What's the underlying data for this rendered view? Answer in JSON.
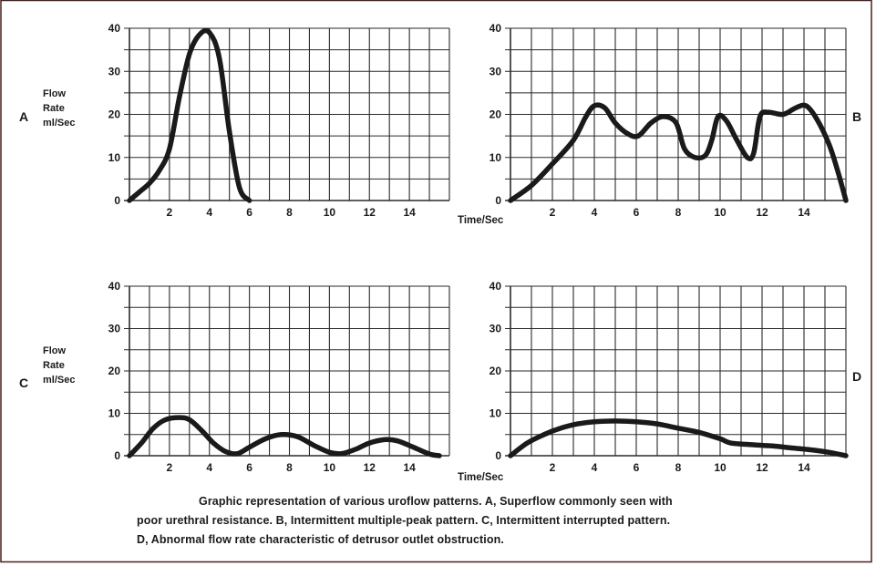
{
  "figure": {
    "caption_lines": [
      "Graphic representation of various uroflow patterns. A, Superflow commonly seen with",
      "poor urethral resistance. B, Intermittent multiple-peak pattern. C, Intermittent interrupted pattern.",
      "D, Abnormal flow rate characteristic of detrusor outlet obstruction."
    ],
    "colors": {
      "frame": "#4a1f1f",
      "ink": "#1a1a1a",
      "grid": "#2a2a2a"
    }
  },
  "chart_data": [
    {
      "type": "line",
      "panel_letter": "A",
      "ylabel": [
        "Flow",
        "Rate",
        "ml/Sec"
      ],
      "xlabel": "Time/Sec",
      "xlim": [
        0,
        16
      ],
      "ylim": [
        0,
        40
      ],
      "xticks": [
        "2",
        "4",
        "6",
        "8",
        "10",
        "12",
        "14"
      ],
      "yticks": [
        "0",
        "10",
        "20",
        "30",
        "40"
      ],
      "grid": true,
      "x": [
        0,
        0.5,
        1,
        1.5,
        2,
        2.5,
        3,
        3.5,
        4,
        4.5,
        5,
        5.5,
        6
      ],
      "y": [
        0,
        2,
        4,
        7,
        12,
        24,
        34,
        38.5,
        39,
        33,
        16,
        3,
        0
      ]
    },
    {
      "type": "line",
      "panel_letter": "B",
      "xlim": [
        0,
        16
      ],
      "ylim": [
        0,
        40
      ],
      "xticks": [
        "2",
        "4",
        "6",
        "8",
        "10",
        "12",
        "14"
      ],
      "yticks": [
        "0",
        "10",
        "20",
        "30",
        "40"
      ],
      "grid": true,
      "x": [
        0,
        1,
        2,
        3,
        3.6,
        4,
        4.5,
        5,
        5.6,
        6.1,
        6.7,
        7.3,
        7.9,
        8.3,
        8.8,
        9.3,
        9.6,
        9.9,
        10.3,
        10.8,
        11.3,
        11.6,
        11.9,
        12.3,
        13,
        13.6,
        14.1,
        14.6,
        15.2,
        15.6,
        16
      ],
      "y": [
        0,
        3.5,
        8.5,
        14,
        19.5,
        22,
        21.5,
        18,
        15.5,
        15,
        18,
        19.5,
        18,
        12,
        10,
        10.5,
        14,
        19.5,
        18.5,
        14,
        10,
        11,
        19.5,
        20.5,
        20,
        21.5,
        22,
        19,
        13,
        7,
        0
      ]
    },
    {
      "type": "line",
      "panel_letter": "C",
      "ylabel": [
        "Flow",
        "Rate",
        "ml/Sec"
      ],
      "xlabel": "Time/Sec",
      "xlim": [
        0,
        16
      ],
      "ylim": [
        0,
        40
      ],
      "xticks": [
        "2",
        "4",
        "6",
        "8",
        "10",
        "12",
        "14"
      ],
      "yticks": [
        "0",
        "10",
        "20",
        "30",
        "40"
      ],
      "grid": true,
      "x": [
        0,
        0.6,
        1.2,
        1.8,
        2.5,
        3,
        3.6,
        4.2,
        4.8,
        5.4,
        6,
        6.8,
        7.6,
        8.4,
        9.2,
        10,
        10.6,
        11.3,
        12,
        12.8,
        13.4,
        14.2,
        15,
        15.5
      ],
      "y": [
        0,
        3,
        6.5,
        8.5,
        9,
        8.5,
        6,
        3,
        1,
        0.5,
        2,
        4,
        5,
        4.5,
        2.5,
        0.8,
        0.5,
        1.5,
        3,
        3.8,
        3.5,
        2,
        0.4,
        0
      ]
    },
    {
      "type": "line",
      "panel_letter": "D",
      "xlim": [
        0,
        16
      ],
      "ylim": [
        0,
        40
      ],
      "xticks": [
        "2",
        "4",
        "6",
        "8",
        "10",
        "12",
        "14"
      ],
      "yticks": [
        "0",
        "10",
        "20",
        "30",
        "40"
      ],
      "grid": true,
      "x": [
        0,
        0.8,
        1.6,
        2.4,
        3.2,
        4,
        5,
        6,
        7,
        8,
        9,
        10,
        10.5,
        11.5,
        12.5,
        13.5,
        14.5,
        15.3,
        16
      ],
      "y": [
        0,
        3,
        5,
        6.5,
        7.5,
        8,
        8.2,
        8,
        7.5,
        6.5,
        5.5,
        4,
        3,
        2.6,
        2.3,
        1.8,
        1.3,
        0.7,
        0
      ]
    }
  ]
}
